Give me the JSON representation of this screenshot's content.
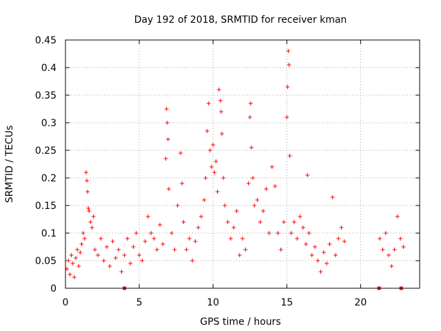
{
  "chart_data": {
    "type": "scatter",
    "title": "Day 192 of 2018, SRMTID for receiver kman",
    "xlabel": "GPS time / hours",
    "ylabel": "SRMTID / TECUs",
    "xlim": [
      0,
      24
    ],
    "ylim": [
      0,
      0.45
    ],
    "xticks": [
      0,
      5,
      10,
      15,
      20
    ],
    "xtick_labels": [
      "0",
      "5",
      "10",
      "15",
      "20"
    ],
    "yticks": [
      0,
      0.05,
      0.1,
      0.15,
      0.2,
      0.25,
      0.3,
      0.35,
      0.4,
      0.45
    ],
    "ytick_labels": [
      "0",
      "0.05",
      "0.1",
      "0.15",
      "0.2",
      "0.25",
      "0.3",
      "0.35",
      "0.4",
      "0.45"
    ],
    "grid": true,
    "marker": "+",
    "color": "#ff0000",
    "data_gap_markers": [
      4.0,
      21.25,
      22.75
    ],
    "series": [
      {
        "name": "SRMTID",
        "points": [
          [
            0.1,
            0.035
          ],
          [
            0.2,
            0.05
          ],
          [
            0.3,
            0.025
          ],
          [
            0.4,
            0.06
          ],
          [
            0.5,
            0.045
          ],
          [
            0.6,
            0.02
          ],
          [
            0.7,
            0.055
          ],
          [
            0.8,
            0.07
          ],
          [
            0.9,
            0.04
          ],
          [
            1.0,
            0.065
          ],
          [
            1.1,
            0.08
          ],
          [
            1.2,
            0.1
          ],
          [
            1.3,
            0.09
          ],
          [
            1.4,
            0.21
          ],
          [
            1.45,
            0.195
          ],
          [
            1.5,
            0.175
          ],
          [
            1.55,
            0.145
          ],
          [
            1.6,
            0.14
          ],
          [
            1.7,
            0.12
          ],
          [
            1.8,
            0.11
          ],
          [
            1.9,
            0.13
          ],
          [
            2.0,
            0.07
          ],
          [
            2.2,
            0.06
          ],
          [
            2.4,
            0.09
          ],
          [
            2.6,
            0.05
          ],
          [
            2.8,
            0.075
          ],
          [
            3.0,
            0.04
          ],
          [
            3.2,
            0.085
          ],
          [
            3.4,
            0.055
          ],
          [
            3.6,
            0.07
          ],
          [
            3.8,
            0.03
          ],
          [
            4.0,
            0.06
          ],
          [
            4.2,
            0.09
          ],
          [
            4.4,
            0.045
          ],
          [
            4.6,
            0.075
          ],
          [
            4.8,
            0.1
          ],
          [
            5.0,
            0.06
          ],
          [
            5.2,
            0.05
          ],
          [
            5.4,
            0.085
          ],
          [
            5.6,
            0.13
          ],
          [
            5.8,
            0.1
          ],
          [
            6.0,
            0.09
          ],
          [
            6.2,
            0.07
          ],
          [
            6.4,
            0.115
          ],
          [
            6.6,
            0.08
          ],
          [
            6.8,
            0.235
          ],
          [
            6.85,
            0.325
          ],
          [
            6.9,
            0.3
          ],
          [
            6.95,
            0.27
          ],
          [
            7.0,
            0.18
          ],
          [
            7.2,
            0.1
          ],
          [
            7.4,
            0.07
          ],
          [
            7.6,
            0.15
          ],
          [
            7.8,
            0.245
          ],
          [
            7.9,
            0.19
          ],
          [
            8.0,
            0.12
          ],
          [
            8.2,
            0.07
          ],
          [
            8.4,
            0.09
          ],
          [
            8.6,
            0.05
          ],
          [
            8.8,
            0.085
          ],
          [
            9.0,
            0.11
          ],
          [
            9.2,
            0.13
          ],
          [
            9.4,
            0.16
          ],
          [
            9.5,
            0.2
          ],
          [
            9.6,
            0.285
          ],
          [
            9.7,
            0.335
          ],
          [
            9.8,
            0.25
          ],
          [
            9.9,
            0.22
          ],
          [
            10.0,
            0.26
          ],
          [
            10.1,
            0.21
          ],
          [
            10.2,
            0.23
          ],
          [
            10.3,
            0.175
          ],
          [
            10.4,
            0.36
          ],
          [
            10.5,
            0.34
          ],
          [
            10.55,
            0.32
          ],
          [
            10.6,
            0.28
          ],
          [
            10.7,
            0.2
          ],
          [
            10.8,
            0.15
          ],
          [
            11.0,
            0.12
          ],
          [
            11.2,
            0.09
          ],
          [
            11.4,
            0.11
          ],
          [
            11.6,
            0.14
          ],
          [
            11.8,
            0.06
          ],
          [
            12.0,
            0.09
          ],
          [
            12.2,
            0.07
          ],
          [
            12.4,
            0.19
          ],
          [
            12.5,
            0.31
          ],
          [
            12.55,
            0.335
          ],
          [
            12.6,
            0.255
          ],
          [
            12.7,
            0.2
          ],
          [
            12.8,
            0.15
          ],
          [
            13.0,
            0.16
          ],
          [
            13.2,
            0.12
          ],
          [
            13.4,
            0.14
          ],
          [
            13.6,
            0.18
          ],
          [
            13.8,
            0.1
          ],
          [
            14.0,
            0.22
          ],
          [
            14.2,
            0.185
          ],
          [
            14.4,
            0.1
          ],
          [
            14.6,
            0.07
          ],
          [
            14.8,
            0.12
          ],
          [
            15.0,
            0.31
          ],
          [
            15.05,
            0.365
          ],
          [
            15.1,
            0.43
          ],
          [
            15.15,
            0.405
          ],
          [
            15.2,
            0.24
          ],
          [
            15.3,
            0.1
          ],
          [
            15.5,
            0.12
          ],
          [
            15.7,
            0.09
          ],
          [
            15.9,
            0.13
          ],
          [
            16.1,
            0.11
          ],
          [
            16.3,
            0.08
          ],
          [
            16.4,
            0.205
          ],
          [
            16.5,
            0.1
          ],
          [
            16.7,
            0.06
          ],
          [
            16.9,
            0.075
          ],
          [
            17.1,
            0.05
          ],
          [
            17.3,
            0.03
          ],
          [
            17.5,
            0.065
          ],
          [
            17.7,
            0.045
          ],
          [
            17.9,
            0.08
          ],
          [
            18.1,
            0.165
          ],
          [
            18.3,
            0.06
          ],
          [
            18.5,
            0.09
          ],
          [
            18.7,
            0.11
          ],
          [
            18.9,
            0.085
          ],
          [
            21.3,
            0.09
          ],
          [
            21.5,
            0.07
          ],
          [
            21.7,
            0.1
          ],
          [
            21.9,
            0.06
          ],
          [
            22.1,
            0.04
          ],
          [
            22.3,
            0.07
          ],
          [
            22.5,
            0.13
          ],
          [
            22.7,
            0.09
          ],
          [
            22.9,
            0.075
          ]
        ]
      }
    ]
  }
}
